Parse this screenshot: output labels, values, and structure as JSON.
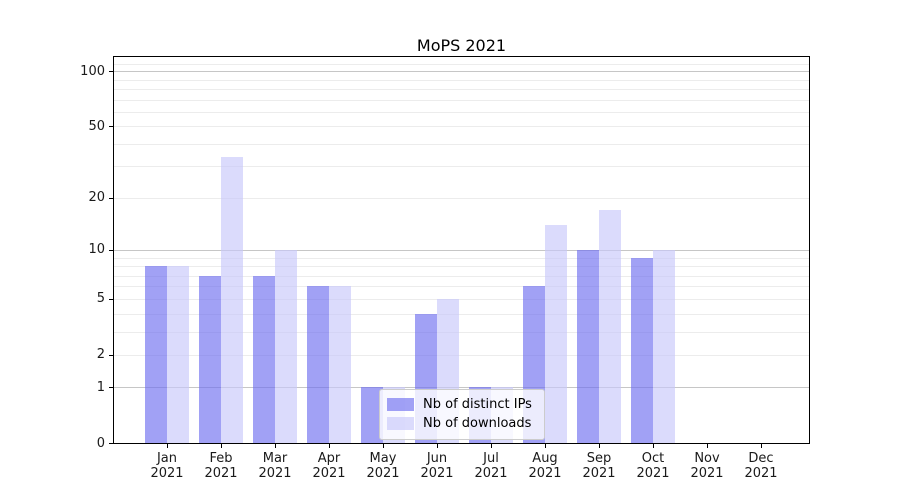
{
  "chart": {
    "title": "MoPS 2021"
  },
  "chart_data": {
    "type": "bar",
    "title": "MoPS 2021",
    "categories": [
      "Jan 2021",
      "Feb 2021",
      "Mar 2021",
      "Apr 2021",
      "May 2021",
      "Jun 2021",
      "Jul 2021",
      "Aug 2021",
      "Sep 2021",
      "Oct 2021",
      "Nov 2021",
      "Dec 2021"
    ],
    "series": [
      {
        "name": "Nb of distinct IPs",
        "color": "#6e6ef0",
        "color_on_white": "#a1a1f5",
        "values": [
          8,
          7,
          7,
          6,
          1,
          4,
          1,
          6,
          10,
          9,
          0,
          0
        ]
      },
      {
        "name": "Nb of downloads",
        "color": "#c8c8fa",
        "color_on_white": "#dbdbfc",
        "values": [
          8,
          34,
          10,
          6,
          1,
          5,
          1,
          14,
          17,
          10,
          0,
          0
        ]
      }
    ],
    "xlabel": "",
    "ylabel": "",
    "yscale": "log1p",
    "yticks": [
      0,
      1,
      2,
      5,
      10,
      20,
      50,
      100
    ],
    "yticks_minor": [
      3,
      4,
      6,
      7,
      8,
      9,
      30,
      40,
      60,
      70,
      80,
      90,
      110
    ],
    "ylim": [
      0,
      121
    ],
    "grid": "on",
    "grid_major_color": "#c6c6c6",
    "grid_minor_color": "#ececec",
    "legend_position": "lower center"
  }
}
